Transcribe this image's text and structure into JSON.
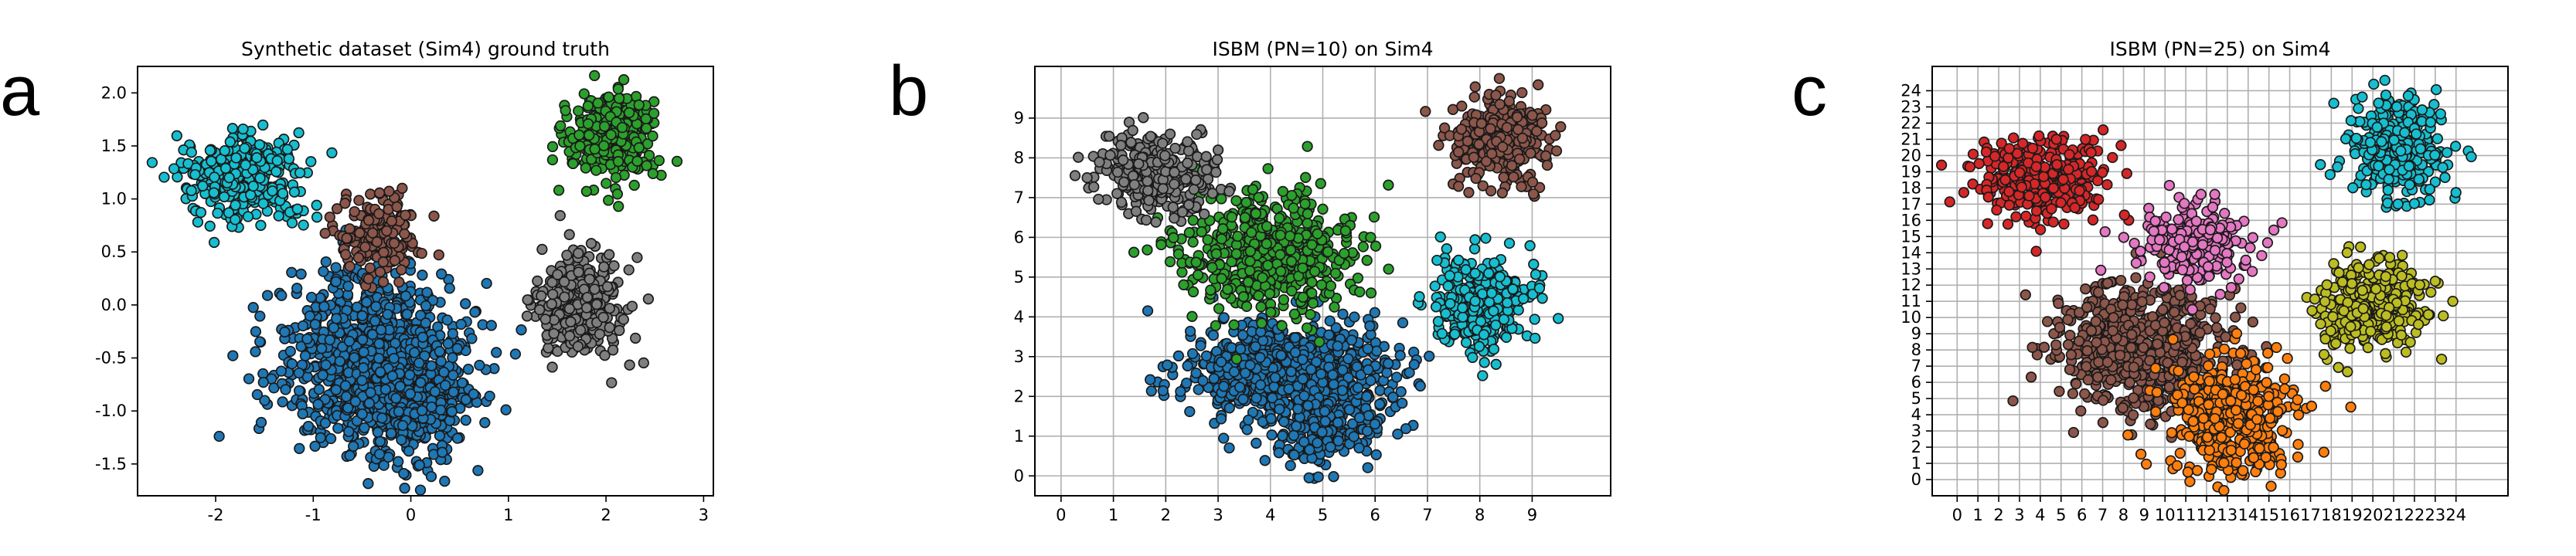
{
  "panel_letters": [
    "a",
    "b",
    "c"
  ],
  "chart_data": [
    {
      "type": "scatter",
      "title": "Synthetic dataset (Sim4)  ground truth",
      "xlabel": "",
      "ylabel": "",
      "xlim": [
        -2.8,
        3.1
      ],
      "ylim": [
        -1.8,
        2.25
      ],
      "xticks": [
        -2,
        -1,
        0,
        1,
        2,
        3
      ],
      "yticks": [
        -1.5,
        -1.0,
        -0.5,
        0.0,
        0.5,
        1.0,
        1.5,
        2.0
      ],
      "ytick_labels": [
        "-1.5",
        "-1.0",
        "-0.5",
        "0.0",
        "0.5",
        "1.0",
        "1.5",
        "2.0"
      ],
      "grid": false,
      "clusters": [
        {
          "color": "#1f77b4",
          "center": [
            -0.4,
            -0.5
          ],
          "spread": [
            0.48,
            0.4
          ],
          "n": 900
        },
        {
          "color": "#1f77b4",
          "center": [
            0.05,
            -0.95
          ],
          "spread": [
            0.3,
            0.3
          ],
          "n": 250
        },
        {
          "color": "#17becf",
          "center": [
            -1.75,
            1.2
          ],
          "spread": [
            0.3,
            0.2
          ],
          "n": 330
        },
        {
          "color": "#8c564b",
          "center": [
            -0.35,
            0.65
          ],
          "spread": [
            0.22,
            0.2
          ],
          "n": 190
        },
        {
          "color": "#2ca02c",
          "center": [
            2.05,
            1.6
          ],
          "spread": [
            0.22,
            0.22
          ],
          "n": 330
        },
        {
          "color": "#7f7f7f",
          "center": [
            1.75,
            0.0
          ],
          "spread": [
            0.23,
            0.24
          ],
          "n": 330
        }
      ]
    },
    {
      "type": "scatter",
      "title": "ISBM (PN=10) on Sim4",
      "xlabel": "",
      "ylabel": "",
      "xlim": [
        -0.5,
        10.5
      ],
      "ylim": [
        -0.5,
        10.3
      ],
      "xticks": [
        0,
        1,
        2,
        3,
        4,
        5,
        6,
        7,
        8,
        9
      ],
      "yticks": [
        0,
        1,
        2,
        3,
        4,
        5,
        6,
        7,
        8,
        9
      ],
      "grid": true,
      "clusters": [
        {
          "color": "#1f77b4",
          "center": [
            4.3,
            2.7
          ],
          "spread": [
            0.95,
            0.55
          ],
          "n": 800
        },
        {
          "color": "#1f77b4",
          "center": [
            5.0,
            1.3
          ],
          "spread": [
            0.55,
            0.5
          ],
          "n": 250
        },
        {
          "color": "#2ca02c",
          "center": [
            4.0,
            5.6
          ],
          "spread": [
            0.85,
            0.75
          ],
          "n": 500
        },
        {
          "color": "#7f7f7f",
          "center": [
            1.8,
            7.6
          ],
          "spread": [
            0.55,
            0.5
          ],
          "n": 330
        },
        {
          "color": "#8c564b",
          "center": [
            8.4,
            8.4
          ],
          "spread": [
            0.45,
            0.55
          ],
          "n": 330
        },
        {
          "color": "#17becf",
          "center": [
            8.0,
            4.3
          ],
          "spread": [
            0.45,
            0.6
          ],
          "n": 330
        }
      ]
    },
    {
      "type": "scatter",
      "title": "ISBM (PN=25) on Sim4",
      "xlabel": "",
      "ylabel": "",
      "xlim": [
        -1.2,
        26.5
      ],
      "ylim": [
        -1.0,
        25.5
      ],
      "xticks": [
        0,
        1,
        2,
        3,
        4,
        5,
        6,
        7,
        8,
        9,
        10,
        11,
        12,
        13,
        14,
        15,
        16,
        17,
        18,
        19,
        20,
        21,
        22,
        23,
        24
      ],
      "yticks": [
        0,
        1,
        2,
        3,
        4,
        5,
        6,
        7,
        8,
        9,
        10,
        11,
        12,
        13,
        14,
        15,
        16,
        17,
        18,
        19,
        20,
        21,
        22,
        23,
        24
      ],
      "grid": true,
      "clusters": [
        {
          "color": "#8c564b",
          "center": [
            9.0,
            8.0
          ],
          "spread": [
            2.1,
            2.0
          ],
          "n": 700
        },
        {
          "color": "#ff7f0e",
          "center": [
            13.3,
            4.0
          ],
          "spread": [
            1.4,
            1.8
          ],
          "n": 450
        },
        {
          "color": "#d62728",
          "center": [
            4.2,
            18.6
          ],
          "spread": [
            1.6,
            1.3
          ],
          "n": 330
        },
        {
          "color": "#e377c2",
          "center": [
            11.3,
            14.6
          ],
          "spread": [
            1.3,
            1.2
          ],
          "n": 260
        },
        {
          "color": "#17becf",
          "center": [
            21.3,
            20.5
          ],
          "spread": [
            1.2,
            1.6
          ],
          "n": 330
        },
        {
          "color": "#bcbd22",
          "center": [
            20.0,
            10.5
          ],
          "spread": [
            1.3,
            1.4
          ],
          "n": 330
        }
      ]
    }
  ]
}
